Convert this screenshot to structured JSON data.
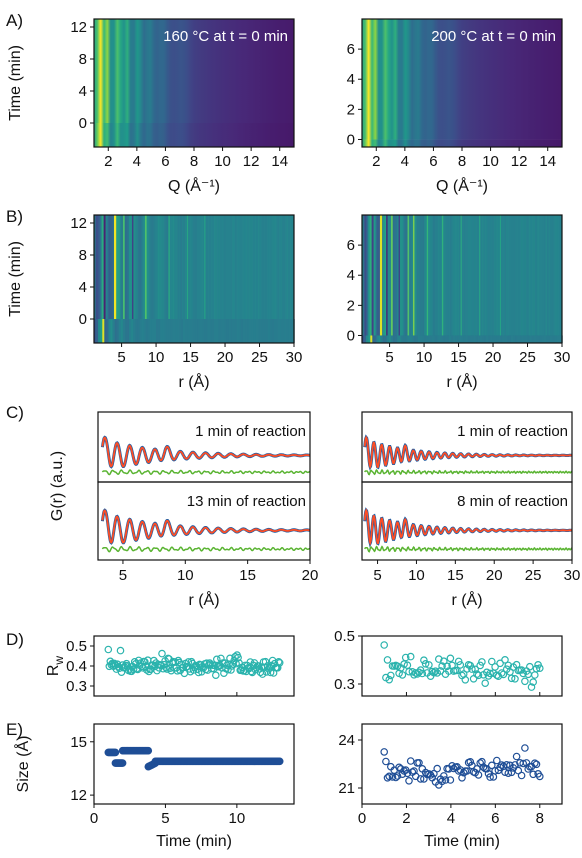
{
  "panels": {
    "A": "A)",
    "B": "B)",
    "C": "C)",
    "D": "D)",
    "E": "E)"
  },
  "colors": {
    "blue": "#1f5fa6",
    "red": "#ff4d24",
    "green": "#5ab432",
    "teal": "#2ab3ad",
    "navy": "#1f4e96"
  },
  "chart_data": [
    {
      "id": "A1",
      "type": "heatmap",
      "annotation": "160 °C at t = 0 min",
      "xlabel": "Q (Å⁻¹)",
      "ylabel": "Time (min)",
      "xlim": [
        1,
        15
      ],
      "ylim": [
        -3,
        13
      ],
      "xticks": [
        2,
        4,
        6,
        8,
        10,
        12,
        14
      ],
      "yticks": [
        0,
        4,
        8,
        12
      ],
      "split_time": 0
    },
    {
      "id": "A2",
      "type": "heatmap",
      "annotation": "200 °C at t = 0 min",
      "xlabel": "Q (Å⁻¹)",
      "ylabel": "",
      "xlim": [
        1,
        15
      ],
      "ylim": [
        -0.5,
        8
      ],
      "xticks": [
        2,
        4,
        6,
        8,
        10,
        12,
        14
      ],
      "yticks": [
        0,
        2,
        4,
        6
      ],
      "split_time": 0
    },
    {
      "id": "B1",
      "type": "heatmap",
      "xlabel": "r (Å)",
      "ylabel": "Time (min)",
      "xlim": [
        1,
        30
      ],
      "ylim": [
        -3,
        13
      ],
      "xticks": [
        5,
        10,
        15,
        20,
        25,
        30
      ],
      "yticks": [
        0,
        4,
        8,
        12
      ],
      "split_time": 0
    },
    {
      "id": "B2",
      "type": "heatmap",
      "xlabel": "r (Å)",
      "ylabel": "",
      "xlim": [
        1,
        30
      ],
      "ylim": [
        -0.5,
        8
      ],
      "xticks": [
        5,
        10,
        15,
        20,
        25,
        30
      ],
      "yticks": [
        0,
        2,
        4,
        6
      ],
      "split_time": 0
    },
    {
      "id": "C1",
      "type": "line",
      "xlabel": "r (Å)",
      "ylabel": "G(r) (a.u.)",
      "xlim": [
        3,
        20
      ],
      "xticks": [
        5,
        10,
        15,
        20
      ],
      "subplots": [
        {
          "annotation": "1 min of reaction",
          "decay": 4.5
        },
        {
          "annotation": "13 min of reaction",
          "decay": 4.5
        }
      ]
    },
    {
      "id": "C2",
      "type": "line",
      "xlabel": "r (Å)",
      "ylabel": "",
      "xlim": [
        3,
        30
      ],
      "xticks": [
        5,
        10,
        15,
        20,
        25,
        30
      ],
      "subplots": [
        {
          "annotation": "1 min of reaction",
          "decay": 5.5
        },
        {
          "annotation": "8 min of reaction",
          "decay": 5.5
        }
      ]
    },
    {
      "id": "D1",
      "type": "scatter",
      "xlabel": "",
      "ylabel": "R_w",
      "xlim": [
        0,
        14
      ],
      "ylim": [
        0.25,
        0.55
      ],
      "yticks": [
        0.3,
        0.4,
        0.5
      ],
      "yticklabels": [
        "0.3",
        "0.4",
        "0.5"
      ],
      "x_start": 1,
      "x_end": 13,
      "n": 170,
      "mean": 0.4,
      "spread": 0.022
    },
    {
      "id": "D2",
      "type": "scatter",
      "xlabel": "",
      "ylabel": "",
      "xlim": [
        0,
        9
      ],
      "ylim": [
        0.25,
        0.5
      ],
      "yticks": [
        0.3,
        0.5
      ],
      "yticklabels": [
        "0.3",
        "0.5"
      ],
      "x_start": 1,
      "x_end": 8,
      "n": 95,
      "mean": 0.36,
      "spread": 0.025
    },
    {
      "id": "E1",
      "type": "scatter",
      "xlabel": "Time (min)",
      "ylabel": "Size (Å)",
      "xlim": [
        0,
        14
      ],
      "ylim": [
        11.5,
        16
      ],
      "xticks": [
        0,
        5,
        10
      ],
      "yticks": [
        12,
        15
      ],
      "segments": [
        {
          "x0": 1.0,
          "x1": 1.5,
          "y0": 14.4,
          "y1": 14.4
        },
        {
          "x0": 1.5,
          "x1": 2.0,
          "y0": 13.8,
          "y1": 13.8
        },
        {
          "x0": 2.0,
          "x1": 3.8,
          "y0": 14.5,
          "y1": 14.5
        },
        {
          "x0": 3.8,
          "x1": 4.3,
          "y0": 13.6,
          "y1": 13.8
        },
        {
          "x0": 4.3,
          "x1": 13.0,
          "y0": 13.9,
          "y1": 13.9
        }
      ]
    },
    {
      "id": "E2",
      "type": "scatter",
      "xlabel": "Time (min)",
      "ylabel": "",
      "xlim": [
        0,
        9
      ],
      "ylim": [
        20,
        25
      ],
      "xticks": [
        0,
        2,
        4,
        6,
        8
      ],
      "yticks": [
        21,
        24
      ],
      "x_start": 1,
      "x_end": 8,
      "n": 95,
      "mean": 22.1,
      "spread": 0.35
    }
  ]
}
